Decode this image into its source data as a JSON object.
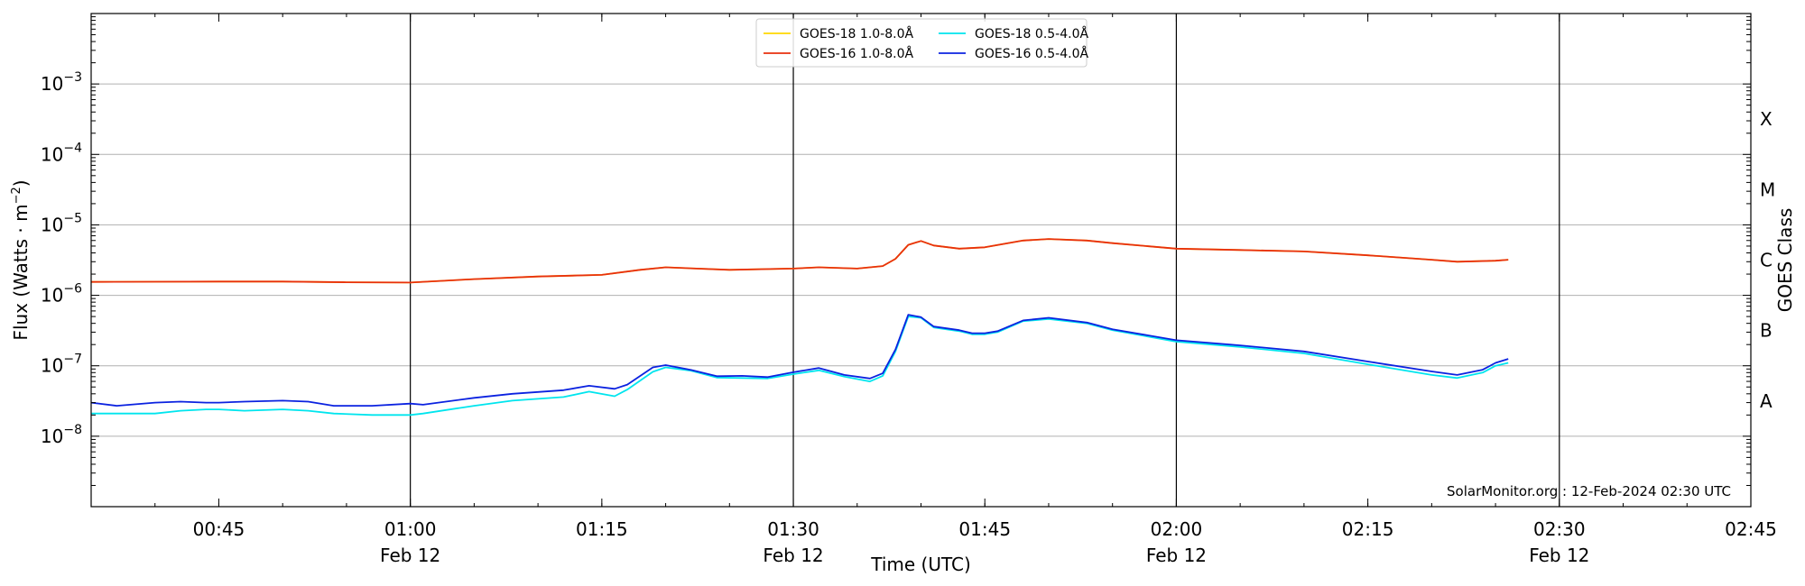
{
  "chart_data": {
    "type": "line",
    "title": "",
    "xlabel": "Time (UTC)",
    "ylabel": "Flux (Watts · m",
    "ylabel_sup": "−2",
    "ylabel_end": ")",
    "y2label": "GOES Class",
    "yscale": "log",
    "ylim": [
      1e-09,
      0.01
    ],
    "xlim": [
      "00:35",
      "02:45"
    ],
    "date": "Feb 12",
    "grid": "horizontal",
    "legend_position": "top-center",
    "x_ticks": [
      {
        "t": "00:45",
        "label": "00:45",
        "date": ""
      },
      {
        "t": "01:00",
        "label": "01:00",
        "date": "Feb 12",
        "vline": true
      },
      {
        "t": "01:15",
        "label": "01:15",
        "date": ""
      },
      {
        "t": "01:30",
        "label": "01:30",
        "date": "Feb 12",
        "vline": true
      },
      {
        "t": "01:45",
        "label": "01:45",
        "date": ""
      },
      {
        "t": "02:00",
        "label": "02:00",
        "date": "Feb 12",
        "vline": true
      },
      {
        "t": "02:15",
        "label": "02:15",
        "date": ""
      },
      {
        "t": "02:30",
        "label": "02:30",
        "date": "Feb 12",
        "vline": true
      },
      {
        "t": "02:45",
        "label": "02:45",
        "date": ""
      }
    ],
    "y_ticks": [
      {
        "exp": -8,
        "label": "10",
        "sup": "−8"
      },
      {
        "exp": -7,
        "label": "10",
        "sup": "−7"
      },
      {
        "exp": -6,
        "label": "10",
        "sup": "−6"
      },
      {
        "exp": -5,
        "label": "10",
        "sup": "−5"
      },
      {
        "exp": -4,
        "label": "10",
        "sup": "−4"
      },
      {
        "exp": -3,
        "label": "10",
        "sup": "−3"
      }
    ],
    "goes_classes": [
      {
        "label": "A",
        "exp": -7.5
      },
      {
        "label": "B",
        "exp": -6.5
      },
      {
        "label": "C",
        "exp": -5.5
      },
      {
        "label": "M",
        "exp": -4.5
      },
      {
        "label": "X",
        "exp": -3.5
      }
    ],
    "annotation": "SolarMonitor.org : 12-Feb-2024 02:30 UTC",
    "colors": {
      "goes18_long": "#ffd700",
      "goes16_long": "#e8300e",
      "goes18_short": "#00e5ee",
      "goes16_short": "#0b22e0",
      "grid": "#b0b0b0",
      "vline": "#000000"
    },
    "series": [
      {
        "name": "GOES-18 1.0-8.0Å",
        "color_key": "goes18_long",
        "x": [
          "00:35",
          "00:40",
          "00:45",
          "00:50",
          "00:55",
          "01:00",
          "01:05",
          "01:10",
          "01:15",
          "01:18",
          "01:20",
          "01:25",
          "01:30",
          "01:32",
          "01:35",
          "01:37",
          "01:38",
          "01:39",
          "01:40",
          "01:41",
          "01:43",
          "01:45",
          "01:48",
          "01:50",
          "01:53",
          "01:55",
          "02:00",
          "02:05",
          "02:10",
          "02:15",
          "02:20",
          "02:22",
          "02:25",
          "02:26"
        ],
        "values": [
          1.55e-06,
          1.56e-06,
          1.57e-06,
          1.57e-06,
          1.53e-06,
          1.52e-06,
          1.7e-06,
          1.85e-06,
          1.95e-06,
          2.3e-06,
          2.5e-06,
          2.3e-06,
          2.4e-06,
          2.5e-06,
          2.4e-06,
          2.6e-06,
          3.3e-06,
          5.2e-06,
          5.9e-06,
          5.1e-06,
          4.6e-06,
          4.8e-06,
          6e-06,
          6.3e-06,
          6e-06,
          5.5e-06,
          4.6e-06,
          4.4e-06,
          4.2e-06,
          3.7e-06,
          3.2e-06,
          3e-06,
          3.1e-06,
          3.2e-06
        ]
      },
      {
        "name": "GOES-16 1.0-8.0Å",
        "color_key": "goes16_long",
        "x": [
          "00:35",
          "00:40",
          "00:45",
          "00:50",
          "00:55",
          "01:00",
          "01:05",
          "01:10",
          "01:15",
          "01:18",
          "01:20",
          "01:25",
          "01:30",
          "01:32",
          "01:35",
          "01:37",
          "01:38",
          "01:39",
          "01:40",
          "01:41",
          "01:43",
          "01:45",
          "01:48",
          "01:50",
          "01:53",
          "01:55",
          "02:00",
          "02:05",
          "02:10",
          "02:15",
          "02:20",
          "02:22",
          "02:25",
          "02:26"
        ],
        "values": [
          1.55e-06,
          1.56e-06,
          1.57e-06,
          1.57e-06,
          1.53e-06,
          1.52e-06,
          1.7e-06,
          1.85e-06,
          1.95e-06,
          2.3e-06,
          2.5e-06,
          2.3e-06,
          2.4e-06,
          2.5e-06,
          2.4e-06,
          2.6e-06,
          3.3e-06,
          5.2e-06,
          5.9e-06,
          5.1e-06,
          4.6e-06,
          4.8e-06,
          6e-06,
          6.3e-06,
          6e-06,
          5.5e-06,
          4.6e-06,
          4.4e-06,
          4.2e-06,
          3.7e-06,
          3.2e-06,
          3e-06,
          3.1e-06,
          3.2e-06
        ]
      },
      {
        "name": "GOES-18 0.5-4.0Å",
        "color_key": "goes18_short",
        "x": [
          "00:35",
          "00:37",
          "00:40",
          "00:42",
          "00:44",
          "00:45",
          "00:47",
          "00:50",
          "00:52",
          "00:54",
          "00:57",
          "01:00",
          "01:01",
          "01:05",
          "01:08",
          "01:12",
          "01:14",
          "01:16",
          "01:17",
          "01:19",
          "01:20",
          "01:22",
          "01:24",
          "01:26",
          "01:28",
          "01:30",
          "01:32",
          "01:34",
          "01:36",
          "01:37",
          "01:38",
          "01:39",
          "01:40",
          "01:41",
          "01:43",
          "01:44",
          "01:45",
          "01:46",
          "01:48",
          "01:50",
          "01:53",
          "01:55",
          "02:00",
          "02:05",
          "02:10",
          "02:15",
          "02:20",
          "02:22",
          "02:24",
          "02:25",
          "02:26"
        ],
        "values": [
          2.1e-08,
          2.1e-08,
          2.1e-08,
          2.3e-08,
          2.4e-08,
          2.4e-08,
          2.3e-08,
          2.4e-08,
          2.3e-08,
          2.1e-08,
          2e-08,
          2e-08,
          2.1e-08,
          2.7e-08,
          3.2e-08,
          3.6e-08,
          4.3e-08,
          3.7e-08,
          4.6e-08,
          8.2e-08,
          9.5e-08,
          8.5e-08,
          6.8e-08,
          6.7e-08,
          6.6e-08,
          7.6e-08,
          8.6e-08,
          7e-08,
          6e-08,
          7.2e-08,
          1.6e-07,
          5e-07,
          4.8e-07,
          3.5e-07,
          3.1e-07,
          2.8e-07,
          2.8e-07,
          3e-07,
          4.3e-07,
          4.6e-07,
          4e-07,
          3.2e-07,
          2.2e-07,
          1.85e-07,
          1.5e-07,
          1.05e-07,
          7.4e-08,
          6.7e-08,
          8e-08,
          1e-07,
          1.1e-07
        ]
      },
      {
        "name": "GOES-16 0.5-4.0Å",
        "color_key": "goes16_short",
        "x": [
          "00:35",
          "00:37",
          "00:40",
          "00:42",
          "00:44",
          "00:45",
          "00:47",
          "00:50",
          "00:52",
          "00:54",
          "00:57",
          "01:00",
          "01:01",
          "01:05",
          "01:08",
          "01:12",
          "01:14",
          "01:16",
          "01:17",
          "01:19",
          "01:20",
          "01:22",
          "01:24",
          "01:26",
          "01:28",
          "01:30",
          "01:32",
          "01:34",
          "01:36",
          "01:37",
          "01:38",
          "01:39",
          "01:40",
          "01:41",
          "01:43",
          "01:44",
          "01:45",
          "01:46",
          "01:48",
          "01:50",
          "01:53",
          "01:55",
          "02:00",
          "02:05",
          "02:10",
          "02:15",
          "02:20",
          "02:22",
          "02:24",
          "02:25",
          "02:26"
        ],
        "values": [
          3e-08,
          2.7e-08,
          3e-08,
          3.1e-08,
          3e-08,
          3e-08,
          3.1e-08,
          3.2e-08,
          3.1e-08,
          2.7e-08,
          2.7e-08,
          2.9e-08,
          2.8e-08,
          3.5e-08,
          4e-08,
          4.5e-08,
          5.2e-08,
          4.7e-08,
          5.4e-08,
          9.5e-08,
          1.02e-07,
          8.7e-08,
          7.1e-08,
          7.2e-08,
          6.9e-08,
          8.1e-08,
          9.3e-08,
          7.4e-08,
          6.6e-08,
          7.8e-08,
          1.7e-07,
          5.3e-07,
          4.9e-07,
          3.6e-07,
          3.2e-07,
          2.9e-07,
          2.9e-07,
          3.1e-07,
          4.4e-07,
          4.8e-07,
          4.1e-07,
          3.3e-07,
          2.3e-07,
          1.95e-07,
          1.6e-07,
          1.15e-07,
          8.3e-08,
          7.4e-08,
          8.8e-08,
          1.1e-07,
          1.25e-07
        ]
      }
    ],
    "legend": [
      {
        "label": "GOES-18 1.0-8.0Å",
        "color_key": "goes18_long"
      },
      {
        "label": "GOES-16 1.0-8.0Å",
        "color_key": "goes16_long"
      },
      {
        "label": "GOES-18 0.5-4.0Å",
        "color_key": "goes18_short"
      },
      {
        "label": "GOES-16 0.5-4.0Å",
        "color_key": "goes16_short"
      }
    ]
  }
}
